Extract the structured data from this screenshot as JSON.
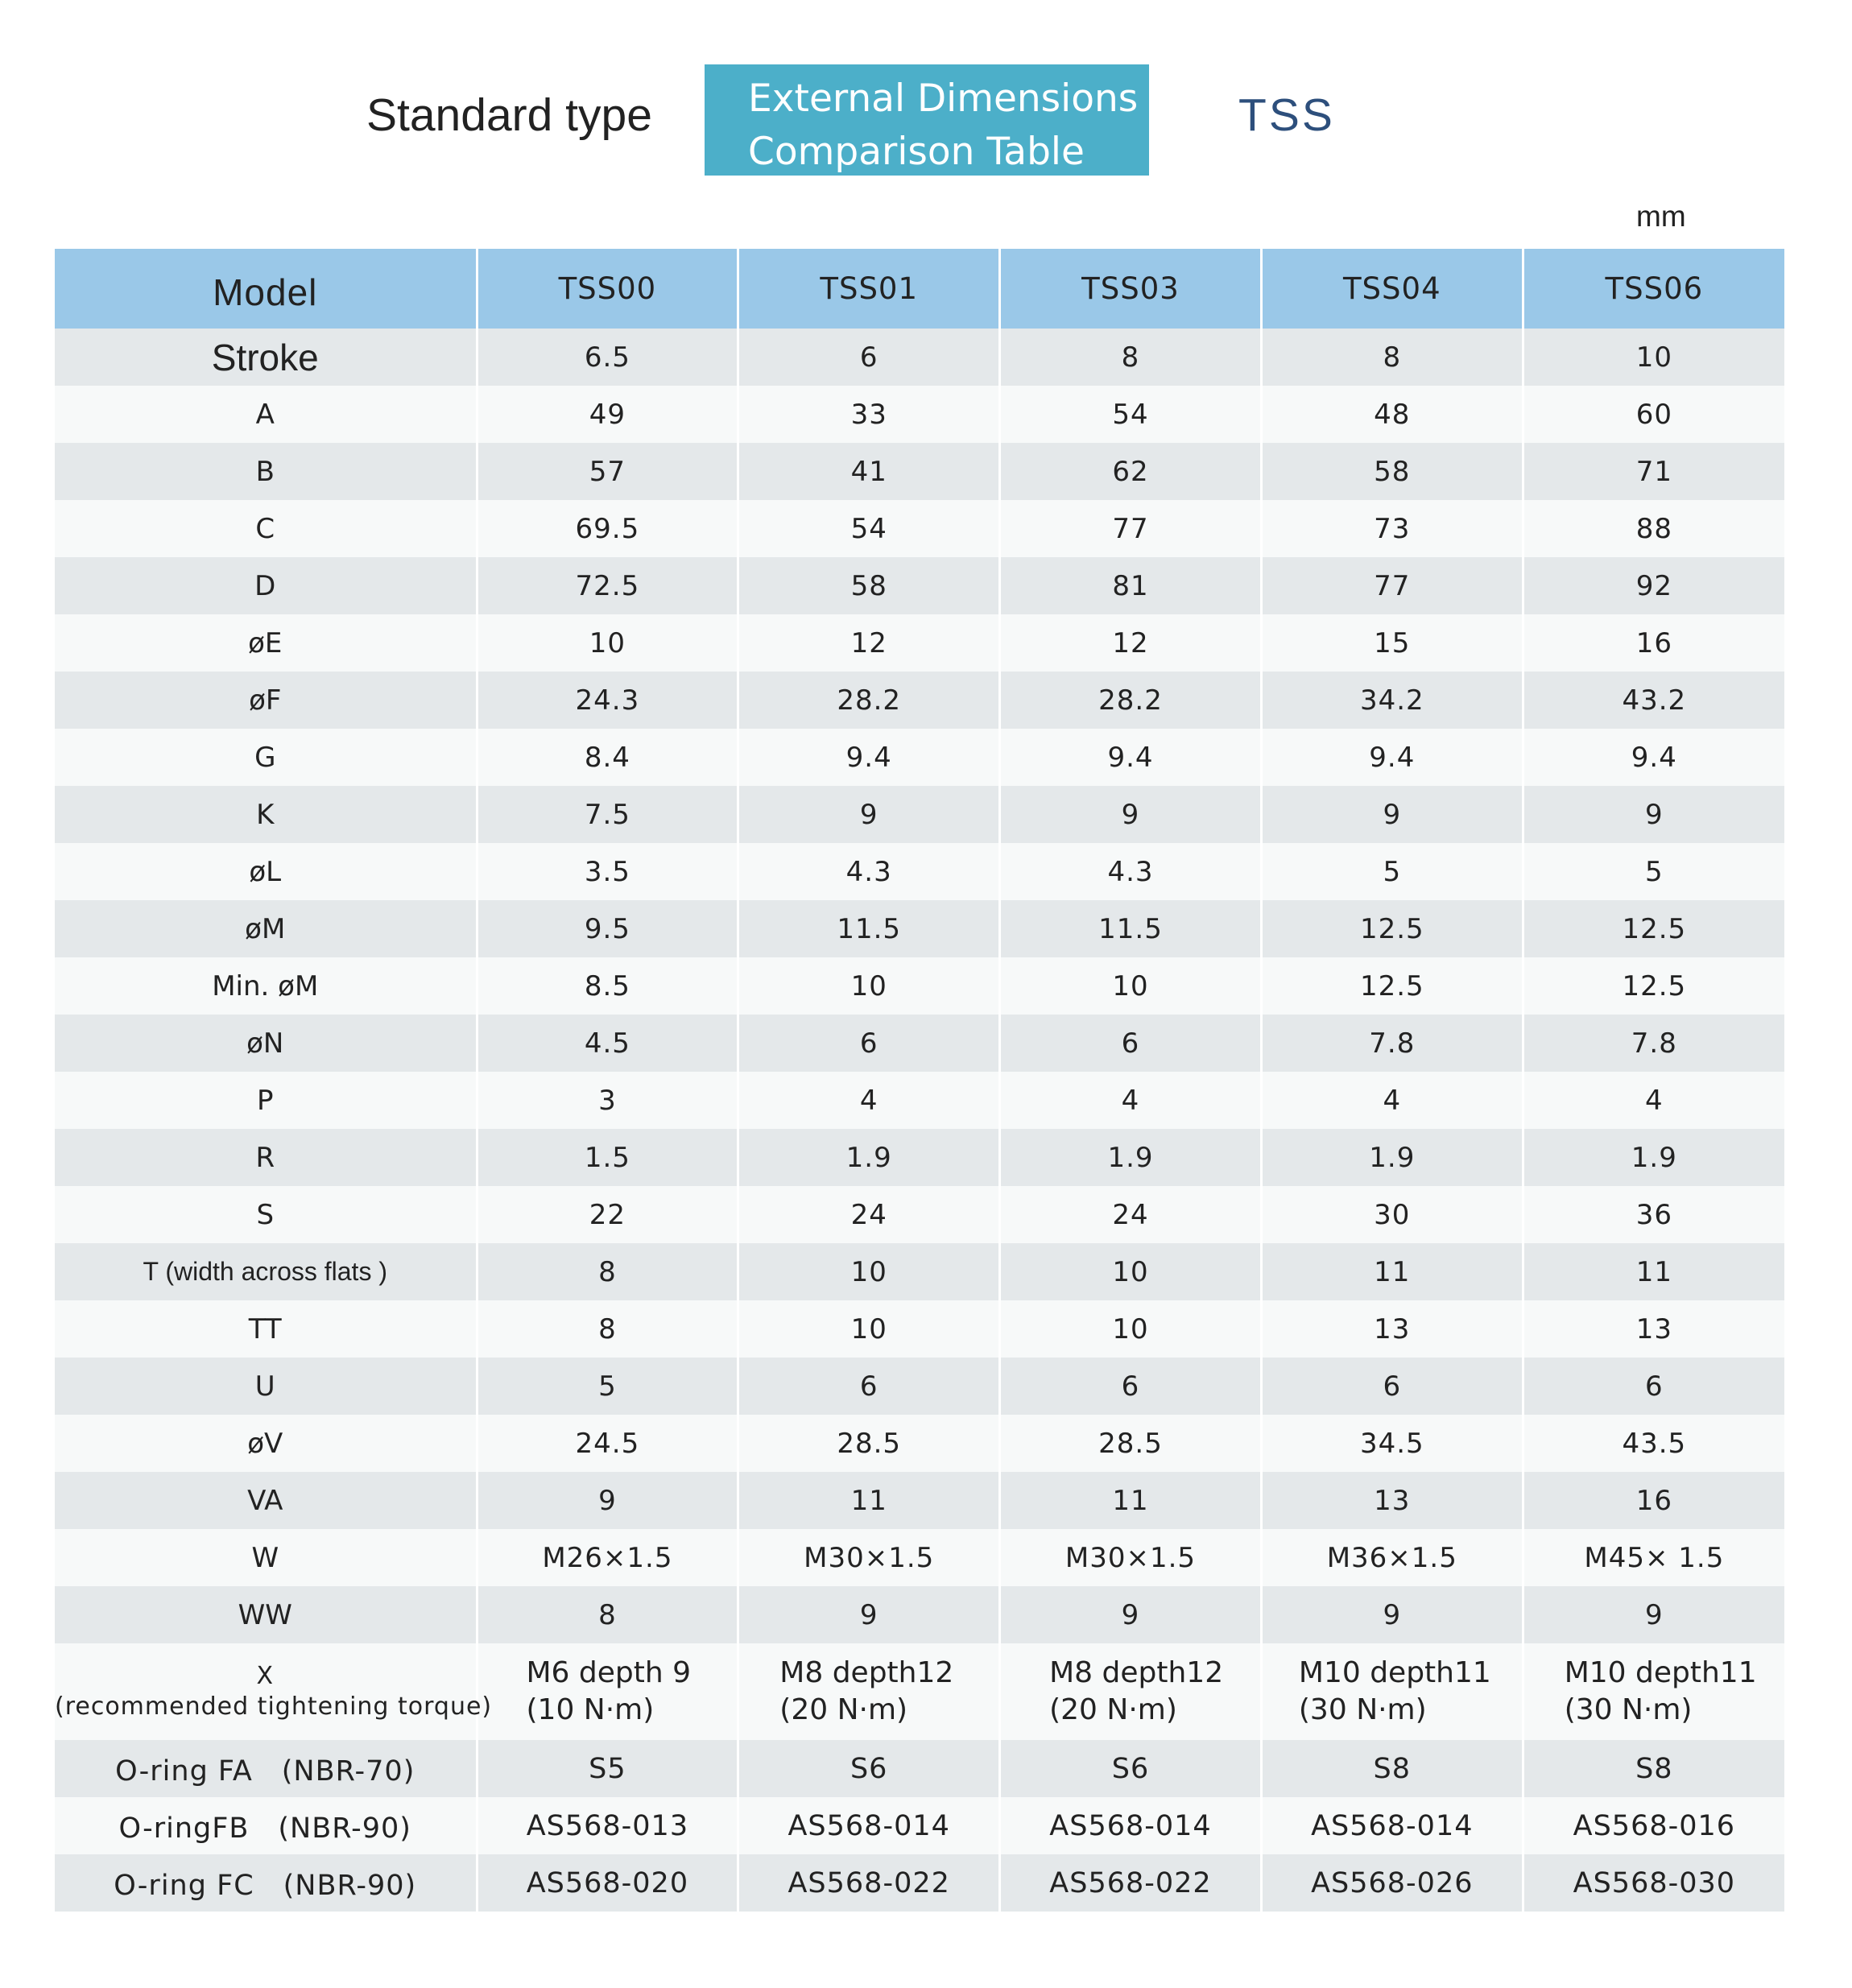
{
  "header": {
    "title_left": "Standard type",
    "title_box_line1": "External Dimensions",
    "title_box_line2": "Comparison Table",
    "title_right": "TSS",
    "unit": "mm",
    "accent_color": "#4cafc9"
  },
  "table": {
    "header_label": "Model",
    "columns": [
      "TSS00",
      "TSS01",
      "TSS03",
      "TSS04",
      "TSS06"
    ],
    "rows": [
      {
        "label": "Stroke",
        "values": [
          "6.5",
          "6",
          "8",
          "8",
          "10"
        ]
      },
      {
        "label": "A",
        "values": [
          "49",
          "33",
          "54",
          "48",
          "60"
        ]
      },
      {
        "label": "B",
        "values": [
          "57",
          "41",
          "62",
          "58",
          "71"
        ]
      },
      {
        "label": "C",
        "values": [
          "69.5",
          "54",
          "77",
          "73",
          "88"
        ]
      },
      {
        "label": "D",
        "values": [
          "72.5",
          "58",
          "81",
          "77",
          "92"
        ]
      },
      {
        "label": "øE",
        "values": [
          "10",
          "12",
          "12",
          "15",
          "16"
        ]
      },
      {
        "label": "øF",
        "values": [
          "24.3",
          "28.2",
          "28.2",
          "34.2",
          "43.2"
        ]
      },
      {
        "label": "G",
        "values": [
          "8.4",
          "9.4",
          "9.4",
          "9.4",
          "9.4"
        ]
      },
      {
        "label": "K",
        "values": [
          "7.5",
          "9",
          "9",
          "9",
          "9"
        ]
      },
      {
        "label": "øL",
        "values": [
          "3.5",
          "4.3",
          "4.3",
          "5",
          "5"
        ]
      },
      {
        "label": "øM",
        "values": [
          "9.5",
          "11.5",
          "11.5",
          "12.5",
          "12.5"
        ]
      },
      {
        "label": "Min. øM",
        "values": [
          "8.5",
          "10",
          "10",
          "12.5",
          "12.5"
        ]
      },
      {
        "label": "øN",
        "values": [
          "4.5",
          "6",
          "6",
          "7.8",
          "7.8"
        ]
      },
      {
        "label": "P",
        "values": [
          "3",
          "4",
          "4",
          "4",
          "4"
        ]
      },
      {
        "label": "R",
        "values": [
          "1.5",
          "1.9",
          "1.9",
          "1.9",
          "1.9"
        ]
      },
      {
        "label": "S",
        "values": [
          "22",
          "24",
          "24",
          "30",
          "36"
        ]
      },
      {
        "label": "T (width across flats )",
        "values": [
          "8",
          "10",
          "10",
          "11",
          "11"
        ]
      },
      {
        "label": "TT",
        "values": [
          "8",
          "10",
          "10",
          "13",
          "13"
        ]
      },
      {
        "label": "U",
        "values": [
          "5",
          "6",
          "6",
          "6",
          "6"
        ]
      },
      {
        "label": "øV",
        "values": [
          "24.5",
          "28.5",
          "28.5",
          "34.5",
          "43.5"
        ]
      },
      {
        "label": "VA",
        "values": [
          "9",
          "11",
          "11",
          "13",
          "16"
        ]
      },
      {
        "label": "W",
        "values": [
          "M26×1.5",
          "M30×1.5",
          "M30×1.5",
          "M36×1.5",
          "M45× 1.5"
        ]
      },
      {
        "label": "WW",
        "values": [
          "8",
          "9",
          "9",
          "9",
          "9"
        ]
      }
    ],
    "x_row": {
      "label_line1": "X",
      "label_line2": "(recommended tightening torque)",
      "values": [
        {
          "line1": "M6 depth 9",
          "line2": "(10 N·m)"
        },
        {
          "line1": "M8 depth12",
          "line2": "(20 N·m)"
        },
        {
          "line1": "M8 depth12",
          "line2": "(20 N·m)"
        },
        {
          "line1": "M10 depth11",
          "line2": "(30 N·m)"
        },
        {
          "line1": "M10 depth11",
          "line2": "(30 N·m)"
        }
      ]
    },
    "oring_rows": [
      {
        "label": "O-ring FA　(NBR-70)",
        "values": [
          "S5",
          "S6",
          "S6",
          "S8",
          "S8"
        ]
      },
      {
        "label": "O-ringFB　(NBR-90)",
        "values": [
          "AS568-013",
          "AS568-014",
          "AS568-014",
          "AS568-014",
          "AS568-016"
        ]
      },
      {
        "label": "O-ring FC　(NBR-90)",
        "values": [
          "AS568-020",
          "AS568-022",
          "AS568-022",
          "AS568-026",
          "AS568-030"
        ]
      }
    ]
  }
}
